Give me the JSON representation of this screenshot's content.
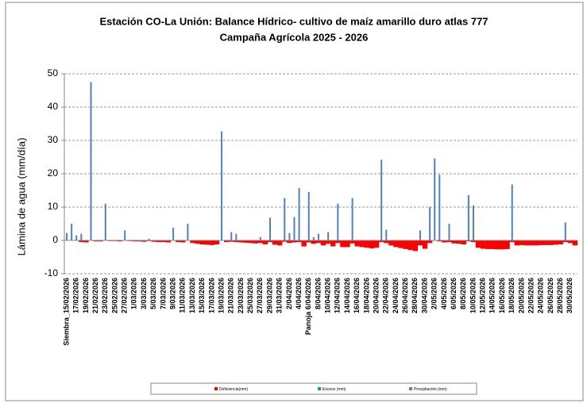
{
  "chart_data": {
    "type": "bar",
    "title": "Estación CO-La Unión: Balance Hídrico- cultivo de maíz amarillo duro atlas 777",
    "subtitle": "Campaña Agrícola 2025 - 2026",
    "y_label": "Lámina de agua (mm/día)",
    "categories": [
      "Siembra_15/02/2026",
      null,
      "17/02/2026",
      null,
      "19/02/2026",
      null,
      "21/02/2026",
      null,
      "23/02/2026",
      null,
      "25/02/2026",
      null,
      "27/02/2026",
      null,
      "1/03/2026",
      null,
      "3/03/2026",
      null,
      "5/03/2026",
      null,
      "7/03/2026",
      null,
      "9/03/2026",
      null,
      "11/03/2026",
      null,
      "13/03/2026",
      null,
      "15/03/2026",
      null,
      "17/03/2026",
      null,
      "19/03/2026",
      null,
      "21/03/2026",
      null,
      "23/03/2026",
      null,
      "25/03/2026",
      null,
      "27/03/2026",
      null,
      "29/03/2026",
      null,
      "31/03/2026",
      null,
      "2/04/2026",
      null,
      "4/04/2026",
      null,
      "Panoja 6/04/2026",
      null,
      "8/04/2026",
      null,
      "10/04/2026",
      null,
      "12/04/2026",
      null,
      "14/04/2026",
      null,
      "16/04/2026",
      null,
      "18/04/2026",
      null,
      "20/04/2026",
      null,
      "22/04/2026",
      null,
      "24/04/2026",
      null,
      "26/04/2026",
      null,
      "28/04/2026",
      null,
      "30/04/2026",
      null,
      "2/05/2026",
      null,
      "4/05/2026",
      null,
      "6/05/2026",
      null,
      "8/05/2026",
      null,
      "10/05/2026",
      null,
      "12/05/2026",
      null,
      "14/05/2026",
      null,
      "16/05/2026",
      null,
      "18/05/2026",
      null,
      "20/05/2026",
      null,
      "22/05/2026",
      null,
      "24/05/2026",
      null,
      "26/05/2026",
      null,
      "28/05/2026",
      null,
      "30/05/2026",
      null
    ],
    "series": [
      {
        "name": "Deficiencia(mm)",
        "color": "#ff0000",
        "values": [
          0,
          0,
          0,
          -0.5,
          -0.6,
          0,
          -0.3,
          -0.3,
          0,
          -0.2,
          -0.2,
          -0.3,
          0,
          -0.2,
          -0.3,
          -0.3,
          -0.4,
          -0.2,
          -0.4,
          -0.5,
          -0.5,
          -0.6,
          0,
          -0.5,
          -0.6,
          0,
          -0.8,
          -1,
          -1.2,
          -1.3,
          -1.4,
          -1.2,
          0,
          -0.5,
          -0.4,
          -0.5,
          -0.6,
          -0.7,
          -0.8,
          -0.9,
          -0.8,
          -1.2,
          -0.5,
          -1.3,
          -1.5,
          -0.4,
          -0.8,
          -0.6,
          -0.5,
          -1.8,
          -0.6,
          -1,
          -0.8,
          -1.5,
          -1,
          -1.8,
          -0.8,
          -2,
          -2,
          -0.9,
          -1.8,
          -2,
          -2.2,
          -2.4,
          -2.2,
          -0.5,
          -0.8,
          -1.5,
          -2,
          -2.3,
          -2.6,
          -2.9,
          -3.2,
          -1.5,
          -2.5,
          -0.8,
          0,
          -0.3,
          -0.6,
          -0.5,
          -0.9,
          -1,
          -1.2,
          -0.3,
          -0.5,
          -2.2,
          -2.5,
          -2.6,
          -2.6,
          -2.7,
          -2.7,
          -2.6,
          -0.5,
          -1.5,
          -1.4,
          -1.5,
          -1.5,
          -1.5,
          -1.4,
          -1.4,
          -1.4,
          -1.3,
          -1.2,
          -0.5,
          -0.8,
          -1.5
        ]
      },
      {
        "name": "Exceso (mm)",
        "color": "#00b050",
        "values": [
          0,
          0,
          0,
          0,
          0,
          0,
          0,
          0,
          0,
          0,
          0,
          0,
          0,
          0,
          0,
          0,
          0,
          0,
          0,
          0,
          0,
          0,
          0,
          0,
          0,
          0,
          0,
          0,
          0,
          0,
          0,
          0,
          0,
          0,
          0,
          0,
          0,
          0,
          0,
          0,
          0,
          0,
          0,
          0,
          0,
          0,
          0,
          0,
          0,
          0,
          0,
          0,
          0,
          0,
          0,
          0,
          0,
          0,
          0,
          0,
          0,
          0,
          0,
          0,
          0,
          0,
          0,
          0,
          0,
          0,
          0,
          0,
          0,
          0,
          0,
          0,
          0,
          0,
          0,
          0,
          0,
          0,
          0,
          0,
          0,
          0,
          0,
          0,
          0,
          0,
          0,
          0,
          0,
          0,
          0,
          0,
          0,
          0,
          0,
          0,
          0,
          0,
          0,
          0,
          0,
          0
        ]
      },
      {
        "name": "Precipitación (mm)",
        "color": "#4f81bd",
        "values": [
          2.2,
          5,
          1.5,
          2,
          0,
          47.5,
          0,
          0,
          11,
          0,
          0,
          0,
          3,
          0,
          0,
          0,
          0,
          0.5,
          0,
          0,
          0,
          0,
          3.8,
          0,
          0,
          5,
          0,
          0,
          0,
          0,
          0,
          0,
          32.7,
          0,
          2.5,
          2,
          0,
          0,
          0,
          0,
          1,
          0,
          6.8,
          0,
          0,
          12.7,
          2.2,
          7,
          15.7,
          0,
          14.5,
          1,
          2,
          0,
          2.5,
          0,
          11,
          0,
          0,
          12.7,
          0,
          0,
          0,
          0,
          0,
          24.2,
          3.2,
          0,
          0,
          0,
          0,
          0,
          0,
          3,
          0,
          10,
          24.6,
          19.7,
          0,
          5,
          0,
          0,
          0,
          13.6,
          10.5,
          0,
          0,
          0,
          0,
          0,
          0,
          0,
          16.8,
          0,
          0,
          0,
          0,
          0,
          0,
          0,
          0,
          0,
          0,
          5.4,
          0,
          0
        ]
      }
    ],
    "ylim": [
      -10,
      50
    ],
    "yticks": [
      -10,
      0,
      10,
      20,
      30,
      40,
      50
    ],
    "grid": true,
    "legend": "bottom"
  }
}
